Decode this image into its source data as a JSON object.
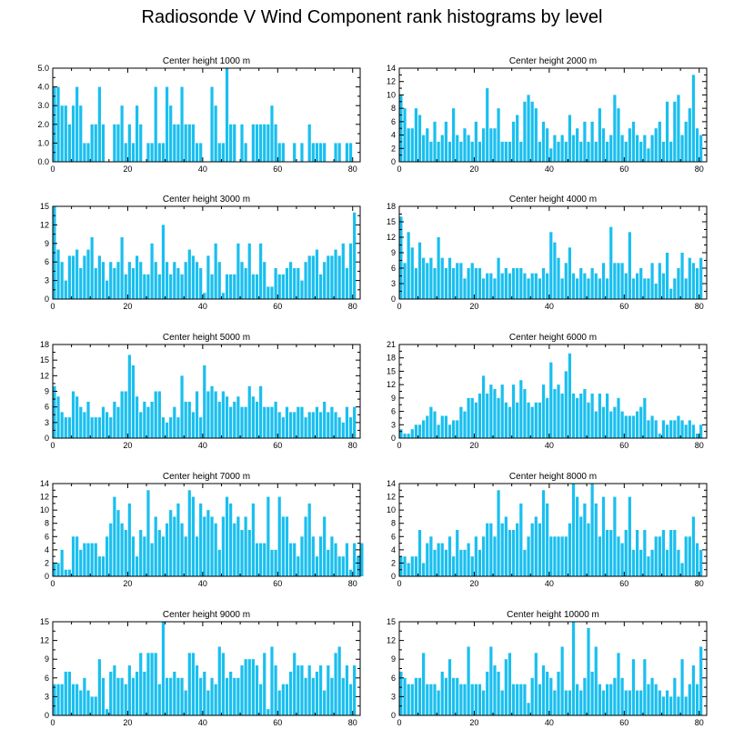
{
  "figure_title": "Radiosonde V Wind Component rank histograms by level",
  "chart_data": [
    {
      "type": "bar",
      "title": "Center height 1000 m",
      "xlim": [
        0,
        82
      ],
      "ylim": [
        0,
        5
      ],
      "xticks": [
        0,
        20,
        40,
        60,
        80
      ],
      "yticks": [
        0,
        1,
        2,
        3,
        4,
        5
      ],
      "ytick_labels": [
        "0.0",
        "1.0",
        "2.0",
        "3.0",
        "4.0",
        "5.0"
      ],
      "x_start": 0,
      "values": [
        4,
        4,
        3,
        3,
        2,
        3,
        4,
        3,
        1,
        1,
        2,
        2,
        4,
        2,
        0,
        0,
        2,
        2,
        3,
        1,
        2,
        1,
        3,
        2,
        0,
        1,
        1,
        4,
        1,
        1,
        4,
        3,
        2,
        2,
        4,
        2,
        2,
        2,
        1,
        1,
        0,
        0,
        4,
        3,
        1,
        1,
        5,
        2,
        2,
        0,
        2,
        1,
        0,
        2,
        2,
        2,
        2,
        2,
        3,
        2,
        1,
        1,
        0,
        0,
        1,
        0,
        1,
        0,
        2,
        1,
        1,
        1,
        1,
        0,
        0,
        1,
        1,
        0,
        1,
        1,
        0,
        0
      ]
    },
    {
      "type": "bar",
      "title": "Center height 2000 m",
      "xlim": [
        0,
        82
      ],
      "ylim": [
        0,
        14
      ],
      "xticks": [
        0,
        20,
        40,
        60,
        80
      ],
      "yticks": [
        0,
        2,
        4,
        6,
        8,
        10,
        12,
        14
      ],
      "x_start": 0,
      "values": [
        10,
        8,
        5,
        5,
        8,
        7,
        4,
        5,
        3,
        6,
        3,
        4,
        6,
        3,
        8,
        4,
        3,
        5,
        4,
        3,
        6,
        3,
        5,
        11,
        5,
        5,
        8,
        3,
        3,
        3,
        6,
        7,
        3,
        9,
        10,
        9,
        8,
        3,
        6,
        5,
        2,
        4,
        3,
        4,
        3,
        7,
        4,
        5,
        3,
        6,
        3,
        6,
        3,
        8,
        5,
        3,
        4,
        10,
        8,
        4,
        3,
        5,
        6,
        4,
        3,
        4,
        2,
        4,
        5,
        6,
        3,
        9,
        3,
        9,
        10,
        4,
        6,
        8,
        13,
        5,
        4
      ]
    },
    {
      "type": "bar",
      "title": "Center height 3000 m",
      "xlim": [
        0,
        82
      ],
      "ylim": [
        0,
        15
      ],
      "xticks": [
        0,
        20,
        40,
        60,
        80
      ],
      "yticks": [
        0,
        3,
        6,
        9,
        12,
        15
      ],
      "x_start": 0,
      "values": [
        15,
        8,
        6,
        3,
        7,
        7,
        8,
        5,
        7,
        8,
        10,
        5,
        7,
        6,
        3,
        6,
        5,
        6,
        10,
        4,
        6,
        5,
        7,
        6,
        4,
        4,
        9,
        6,
        4,
        12,
        6,
        4,
        6,
        5,
        4,
        6,
        8,
        7,
        6,
        5,
        1,
        7,
        4,
        9,
        6,
        1,
        4,
        4,
        4,
        9,
        6,
        5,
        9,
        4,
        4,
        9,
        6,
        2,
        2,
        5,
        4,
        4,
        5,
        6,
        5,
        5,
        3,
        6,
        7,
        7,
        8,
        4,
        6,
        7,
        7,
        8,
        7,
        9,
        5,
        9,
        14
      ]
    },
    {
      "type": "bar",
      "title": "Center height 4000 m",
      "xlim": [
        0,
        82
      ],
      "ylim": [
        0,
        18
      ],
      "xticks": [
        0,
        20,
        40,
        60,
        80
      ],
      "yticks": [
        0,
        3,
        6,
        9,
        12,
        15,
        18
      ],
      "x_start": 0,
      "values": [
        16,
        7,
        13,
        10,
        6,
        11,
        8,
        7,
        8,
        6,
        12,
        8,
        6,
        8,
        6,
        7,
        7,
        4,
        6,
        7,
        6,
        6,
        4,
        5,
        5,
        4,
        8,
        5,
        6,
        5,
        6,
        6,
        6,
        5,
        4,
        5,
        5,
        4,
        6,
        5,
        13,
        11,
        8,
        4,
        7,
        10,
        5,
        4,
        6,
        5,
        4,
        6,
        5,
        4,
        7,
        4,
        14,
        7,
        7,
        7,
        5,
        13,
        4,
        5,
        6,
        4,
        4,
        7,
        3,
        7,
        5,
        9,
        2,
        4,
        6,
        9,
        4,
        8,
        7,
        6,
        8
      ]
    },
    {
      "type": "bar",
      "title": "Center height 5000 m",
      "xlim": [
        0,
        82
      ],
      "ylim": [
        0,
        18
      ],
      "xticks": [
        0,
        20,
        40,
        60,
        80
      ],
      "yticks": [
        0,
        3,
        6,
        9,
        12,
        15,
        18
      ],
      "x_start": 0,
      "values": [
        10,
        8,
        5,
        4,
        4,
        9,
        8,
        6,
        5,
        7,
        4,
        4,
        4,
        6,
        5,
        4,
        7,
        6,
        9,
        9,
        16,
        14,
        8,
        5,
        7,
        6,
        7,
        9,
        9,
        4,
        3,
        4,
        6,
        4,
        12,
        7,
        7,
        5,
        9,
        4,
        14,
        9,
        10,
        9,
        7,
        9,
        8,
        6,
        7,
        8,
        6,
        6,
        10,
        8,
        7,
        10,
        6,
        6,
        6,
        7,
        5,
        4,
        6,
        5,
        5,
        6,
        6,
        4,
        5,
        5,
        6,
        5,
        7,
        5,
        6,
        5,
        4,
        3,
        6,
        4,
        6
      ]
    },
    {
      "type": "bar",
      "title": "Center height 6000 m",
      "xlim": [
        0,
        82
      ],
      "ylim": [
        0,
        21
      ],
      "xticks": [
        0,
        20,
        40,
        60,
        80
      ],
      "yticks": [
        0,
        3,
        6,
        9,
        12,
        15,
        18,
        21
      ],
      "x_start": 0,
      "values": [
        2,
        1,
        1,
        2,
        3,
        3,
        4,
        5,
        7,
        6,
        3,
        5,
        5,
        3,
        4,
        4,
        7,
        6,
        9,
        9,
        8,
        10,
        14,
        10,
        12,
        11,
        9,
        12,
        8,
        7,
        12,
        8,
        13,
        11,
        8,
        7,
        8,
        8,
        12,
        9,
        17,
        11,
        12,
        10,
        15,
        19,
        10,
        9,
        10,
        11,
        8,
        10,
        6,
        10,
        7,
        10,
        6,
        7,
        9,
        6,
        5,
        5,
        5,
        6,
        7,
        9,
        4,
        5,
        4,
        1,
        4,
        3,
        4,
        4,
        5,
        4,
        3,
        4,
        3,
        1,
        3
      ]
    },
    {
      "type": "bar",
      "title": "Center height 7000 m",
      "xlim": [
        0,
        82
      ],
      "ylim": [
        0,
        14
      ],
      "xticks": [
        0,
        20,
        40,
        60,
        80
      ],
      "yticks": [
        0,
        2,
        4,
        6,
        8,
        10,
        12,
        14
      ],
      "x_start": 0,
      "values": [
        2,
        2,
        4,
        1,
        1,
        6,
        6,
        4,
        5,
        5,
        5,
        5,
        3,
        3,
        6,
        8,
        12,
        10,
        8,
        7,
        11,
        6,
        3,
        7,
        6,
        13,
        5,
        9,
        7,
        6,
        8,
        10,
        9,
        11,
        8,
        6,
        13,
        12,
        6,
        11,
        9,
        10,
        9,
        8,
        4,
        9,
        12,
        11,
        8,
        9,
        7,
        9,
        7,
        11,
        5,
        5,
        5,
        12,
        4,
        4,
        12,
        9,
        9,
        5,
        5,
        3,
        6,
        9,
        11,
        6,
        3,
        6,
        9,
        4,
        6,
        5,
        3,
        3,
        5,
        1,
        5,
        3,
        5
      ]
    },
    {
      "type": "bar",
      "title": "Center height 8000 m",
      "xlim": [
        0,
        82
      ],
      "ylim": [
        0,
        14
      ],
      "xticks": [
        0,
        20,
        40,
        60,
        80
      ],
      "yticks": [
        0,
        2,
        4,
        6,
        8,
        10,
        12,
        14
      ],
      "x_start": 0,
      "values": [
        3,
        3,
        2,
        3,
        3,
        7,
        2,
        5,
        6,
        4,
        5,
        5,
        4,
        6,
        3,
        7,
        4,
        4,
        5,
        3,
        6,
        4,
        6,
        8,
        8,
        6,
        13,
        8,
        9,
        7,
        7,
        8,
        11,
        4,
        6,
        8,
        9,
        8,
        13,
        11,
        6,
        6,
        6,
        6,
        6,
        8,
        14,
        12,
        9,
        11,
        8,
        14,
        11,
        6,
        12,
        7,
        7,
        12,
        6,
        5,
        7,
        12,
        4,
        7,
        4,
        7,
        3,
        4,
        6,
        6,
        7,
        4,
        7,
        7,
        4,
        2,
        6,
        6,
        9,
        5,
        4
      ]
    },
    {
      "type": "bar",
      "title": "Center height 9000 m",
      "xlim": [
        0,
        82
      ],
      "ylim": [
        0,
        15
      ],
      "xticks": [
        0,
        20,
        40,
        60,
        80
      ],
      "yticks": [
        0,
        3,
        6,
        9,
        12,
        15
      ],
      "x_start": 0,
      "values": [
        5,
        5,
        5,
        7,
        7,
        5,
        5,
        4,
        6,
        4,
        3,
        3,
        9,
        6,
        1,
        7,
        8,
        6,
        6,
        5,
        8,
        6,
        7,
        10,
        7,
        10,
        10,
        10,
        5,
        15,
        6,
        6,
        7,
        6,
        6,
        4,
        10,
        10,
        8,
        6,
        7,
        4,
        6,
        5,
        11,
        10,
        6,
        7,
        6,
        6,
        8,
        9,
        9,
        9,
        8,
        5,
        10,
        1,
        11,
        8,
        4,
        5,
        5,
        7,
        10,
        8,
        8,
        6,
        8,
        6,
        7,
        8,
        4,
        8,
        6,
        10,
        11,
        6,
        8,
        5,
        8
      ]
    },
    {
      "type": "bar",
      "title": "Center height 10000 m",
      "xlim": [
        0,
        82
      ],
      "ylim": [
        0,
        15
      ],
      "xticks": [
        0,
        20,
        40,
        60,
        80
      ],
      "yticks": [
        0,
        3,
        6,
        9,
        12,
        15
      ],
      "x_start": 0,
      "values": [
        7,
        6,
        5,
        5,
        6,
        6,
        10,
        5,
        5,
        5,
        4,
        7,
        6,
        9,
        6,
        6,
        5,
        5,
        11,
        5,
        5,
        5,
        4,
        7,
        11,
        8,
        7,
        4,
        9,
        10,
        5,
        5,
        5,
        5,
        2,
        6,
        10,
        5,
        8,
        7,
        6,
        4,
        7,
        11,
        4,
        4,
        15,
        5,
        4,
        6,
        14,
        7,
        11,
        5,
        4,
        5,
        5,
        6,
        10,
        6,
        4,
        4,
        9,
        4,
        4,
        9,
        5,
        6,
        5,
        4,
        3,
        4,
        3,
        6,
        3,
        9,
        3,
        5,
        8,
        5,
        11
      ]
    }
  ]
}
